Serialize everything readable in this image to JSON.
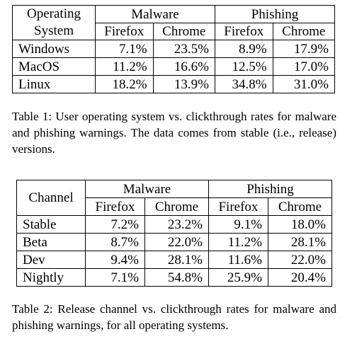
{
  "table1": {
    "corner_label": "Operating System",
    "group_headers": [
      "Malware",
      "Phishing"
    ],
    "sub_headers": [
      "Firefox",
      "Chrome",
      "Firefox",
      "Chrome"
    ],
    "rows": [
      {
        "label": "Windows",
        "values": [
          "7.1%",
          "23.5%",
          "8.9%",
          "17.9%"
        ]
      },
      {
        "label": "MacOS",
        "values": [
          "11.2%",
          "16.6%",
          "12.5%",
          "17.0%"
        ]
      },
      {
        "label": "Linux",
        "values": [
          "18.2%",
          "13.9%",
          "34.8%",
          "31.0%"
        ]
      }
    ],
    "caption": "Table 1: User operating system vs. clickthrough rates for malware and phishing warnings. The data comes from stable (i.e., release) versions."
  },
  "table2": {
    "corner_label": "Channel",
    "group_headers": [
      "Malware",
      "Phishing"
    ],
    "sub_headers": [
      "Firefox",
      "Chrome",
      "Firefox",
      "Chrome"
    ],
    "rows": [
      {
        "label": "Stable",
        "values": [
          "7.2%",
          "23.2%",
          "9.1%",
          "18.0%"
        ]
      },
      {
        "label": "Beta",
        "values": [
          "8.7%",
          "22.0%",
          "11.2%",
          "28.1%"
        ]
      },
      {
        "label": "Dev",
        "values": [
          "9.4%",
          "28.1%",
          "11.6%",
          "22.0%"
        ]
      },
      {
        "label": "Nightly",
        "values": [
          "7.1%",
          "54.8%",
          "25.9%",
          "20.4%"
        ]
      }
    ],
    "caption": "Table 2: Release channel vs. clickthrough rates for malware and phishing warnings, for all operating systems."
  }
}
